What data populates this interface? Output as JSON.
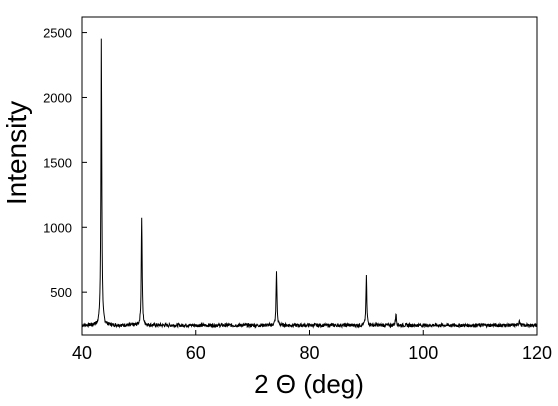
{
  "chart_data": {
    "type": "line",
    "title": "",
    "xlabel": "2 Θ (deg)",
    "ylabel": "Intensity",
    "xlim": [
      40,
      120
    ],
    "ylim": [
      170,
      2620
    ],
    "x_ticks": [
      40,
      60,
      80,
      100,
      120
    ],
    "y_ticks": [
      500,
      1000,
      1500,
      2000,
      2500
    ],
    "x_tick_labels": [
      "40",
      "60",
      "80",
      "100",
      "120"
    ],
    "y_tick_labels": [
      "500",
      "1000",
      "1500",
      "2000",
      "2500"
    ],
    "grid": false,
    "legend": "none",
    "line_color": "#000000",
    "baseline": 245,
    "peaks": [
      {
        "x": 43.4,
        "y": 2460
      },
      {
        "x": 50.5,
        "y": 1080
      },
      {
        "x": 74.2,
        "y": 660
      },
      {
        "x": 90.0,
        "y": 620
      },
      {
        "x": 95.2,
        "y": 340
      },
      {
        "x": 116.9,
        "y": 290
      }
    ]
  }
}
